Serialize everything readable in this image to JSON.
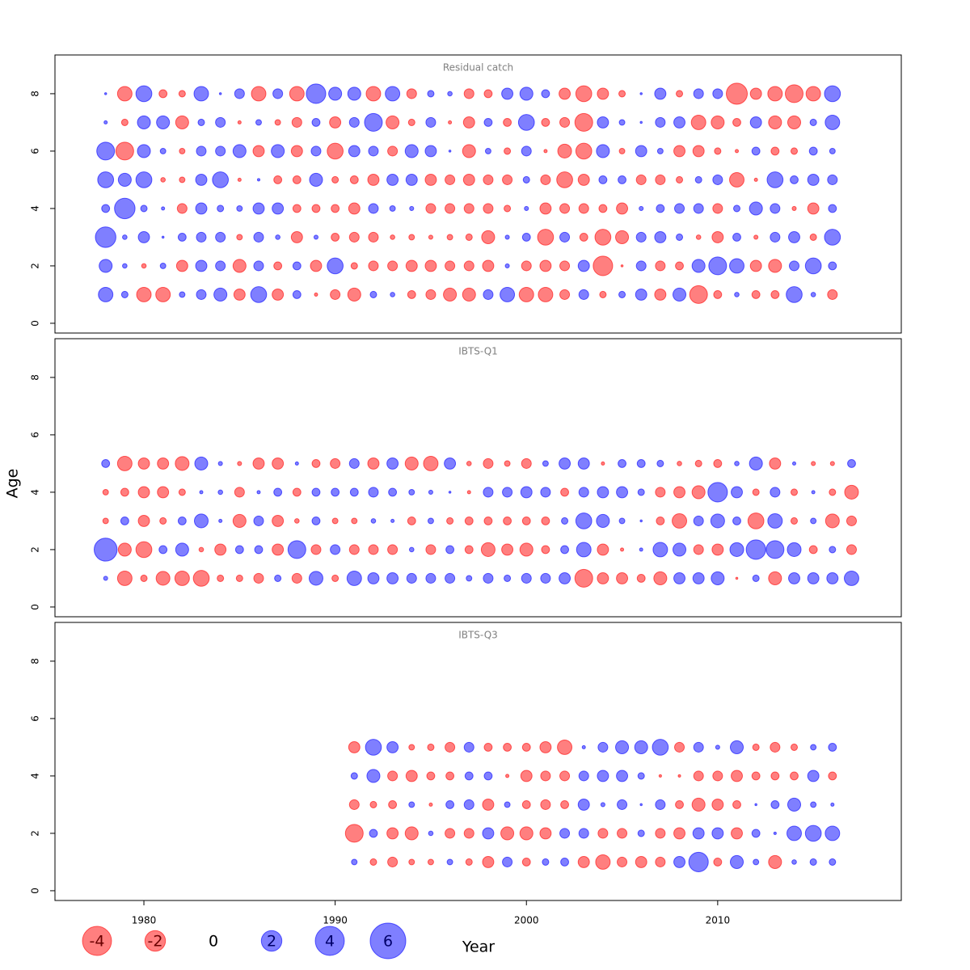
{
  "chart_data": {
    "type": "bubble",
    "xlabel": "Year",
    "ylabel": "Age",
    "xlim": [
      1975.35,
      2019.6
    ],
    "xticks": [
      1980,
      1990,
      2000,
      2010
    ],
    "negative_color": "#ff0000",
    "positive_color": "#0000ff",
    "legend": [
      -4,
      -2,
      0,
      2,
      4,
      6
    ],
    "panels": [
      {
        "title": "Residual catch",
        "x": [
          1978,
          1979,
          1980,
          1981,
          1982,
          1983,
          1984,
          1985,
          1986,
          1987,
          1988,
          1989,
          1990,
          1991,
          1992,
          1993,
          1994,
          1995,
          1996,
          1997,
          1998,
          1999,
          2000,
          2001,
          2002,
          2003,
          2004,
          2005,
          2006,
          2007,
          2008,
          2009,
          2010,
          2011,
          2012,
          2013,
          2014,
          2015,
          2016
        ],
        "y": [
          1,
          2,
          3,
          4,
          5,
          6,
          7,
          8
        ],
        "ylim": [
          -0.34,
          9.35
        ],
        "yticks": [
          0,
          2,
          4,
          6,
          8
        ],
        "values": [
          [
            1.0,
            0.2,
            -1.0,
            -1.0,
            0.15,
            0.45,
            0.8,
            -0.6,
            1.2,
            -0.6,
            0.3,
            -0.05,
            -0.45,
            -0.8,
            0.2,
            0.1,
            -0.3,
            -0.45,
            -0.8,
            -0.8,
            0.45,
            1.0,
            -1.0,
            -1.0,
            -0.45,
            0.45,
            -0.2,
            0.2,
            0.6,
            -0.6,
            0.8,
            -1.5,
            -0.3,
            0.1,
            -0.3,
            -0.3,
            1.2,
            0.1,
            -0.45
          ],
          [
            0.8,
            0.1,
            -0.1,
            0.15,
            -0.6,
            0.6,
            0.45,
            -0.8,
            0.45,
            -0.3,
            0.3,
            -0.6,
            1.2,
            -0.2,
            -0.45,
            -0.45,
            -0.6,
            -0.6,
            -0.45,
            -0.45,
            -0.6,
            0.08,
            -0.45,
            -0.6,
            -0.45,
            0.6,
            -1.8,
            -0.02,
            0.45,
            -0.45,
            -0.3,
            0.8,
            1.5,
            1.0,
            -0.6,
            -0.8,
            0.45,
            1.2,
            0.3
          ],
          [
            2.0,
            0.1,
            0.6,
            0.02,
            0.3,
            0.45,
            0.45,
            -0.15,
            0.45,
            0.1,
            -0.6,
            0.08,
            -0.3,
            -0.45,
            -0.45,
            -0.1,
            -0.15,
            -0.08,
            -0.15,
            -0.2,
            -0.8,
            0.08,
            0.3,
            -1.2,
            0.45,
            -0.3,
            -1.2,
            -0.8,
            0.45,
            0.6,
            0.2,
            -0.1,
            -0.6,
            0.3,
            -0.08,
            0.45,
            0.6,
            -0.2,
            1.2
          ],
          [
            0.3,
            2.0,
            0.2,
            0.05,
            -0.45,
            0.6,
            0.2,
            0.15,
            0.6,
            0.6,
            -0.3,
            -0.3,
            -0.3,
            -0.6,
            0.45,
            0.15,
            0.08,
            -0.45,
            -0.45,
            -0.45,
            -0.45,
            -0.2,
            0.08,
            -0.6,
            -0.45,
            -0.45,
            -0.3,
            -0.6,
            0.08,
            0.3,
            0.45,
            0.45,
            -0.45,
            0.2,
            0.8,
            0.45,
            -0.08,
            -0.6,
            0.3
          ],
          [
            1.2,
            0.8,
            1.2,
            -0.1,
            -0.15,
            0.6,
            1.2,
            -0.05,
            0.03,
            -0.3,
            -0.3,
            0.8,
            -0.2,
            -0.3,
            -0.6,
            0.6,
            0.6,
            -0.6,
            -0.45,
            -0.6,
            -0.45,
            -0.45,
            0.2,
            -0.45,
            -1.2,
            -0.6,
            0.3,
            0.3,
            -0.45,
            -0.45,
            -0.2,
            0.2,
            0.45,
            -1.0,
            -0.05,
            1.2,
            0.3,
            0.6,
            0.45
          ],
          [
            1.5,
            -1.5,
            0.8,
            0.15,
            -0.15,
            0.45,
            0.45,
            0.8,
            -0.6,
            0.8,
            -0.6,
            0.45,
            -1.2,
            0.6,
            0.45,
            -0.45,
            0.8,
            0.6,
            0.02,
            -0.8,
            0.15,
            -0.2,
            0.45,
            -0.05,
            -0.9,
            -1.2,
            0.8,
            -0.15,
            0.6,
            0.15,
            -0.6,
            -0.6,
            -0.2,
            -0.05,
            0.3,
            -0.3,
            -0.2,
            0.3,
            0.15
          ],
          [
            0.05,
            -0.2,
            0.8,
            0.8,
            -0.8,
            0.2,
            0.45,
            -0.05,
            0.15,
            -0.15,
            -0.45,
            0.3,
            -0.6,
            0.45,
            1.5,
            -0.8,
            -0.2,
            0.45,
            -0.05,
            -0.6,
            0.3,
            -0.3,
            1.2,
            -0.3,
            -0.45,
            -1.5,
            0.6,
            0.15,
            0.02,
            0.45,
            0.6,
            -1.0,
            -0.8,
            -0.3,
            0.6,
            -0.8,
            -0.8,
            0.2,
            1.0
          ],
          [
            0.02,
            -1.0,
            1.2,
            -0.3,
            -0.2,
            1.0,
            0.02,
            0.45,
            -1.0,
            0.45,
            -1.0,
            1.8,
            0.8,
            0.8,
            -1.0,
            1.0,
            -0.45,
            0.2,
            0.1,
            -0.45,
            -0.3,
            0.6,
            0.8,
            0.3,
            -0.6,
            -1.2,
            -0.6,
            -0.2,
            0.02,
            0.6,
            -0.2,
            0.45,
            0.45,
            -2.1,
            -0.6,
            -1.0,
            -1.5,
            -1.0,
            1.2
          ]
        ]
      },
      {
        "title": "IBTS-Q1",
        "x": [
          1978,
          1979,
          1980,
          1981,
          1982,
          1983,
          1984,
          1985,
          1986,
          1987,
          1988,
          1989,
          1990,
          1991,
          1992,
          1993,
          1994,
          1995,
          1996,
          1997,
          1998,
          1999,
          2000,
          2001,
          2002,
          2003,
          2004,
          2005,
          2006,
          2007,
          2008,
          2009,
          2010,
          2011,
          2012,
          2013,
          2014,
          2015,
          2016,
          2017
        ],
        "y": [
          1,
          2,
          3,
          4,
          5
        ],
        "ylim": [
          -0.34,
          9.35
        ],
        "yticks": [
          0,
          2,
          4,
          6,
          8
        ],
        "values": [
          [
            0.08,
            -1.0,
            -0.2,
            -0.9,
            -1.0,
            -1.2,
            -0.2,
            -0.2,
            -0.45,
            0.2,
            -0.45,
            0.9,
            -0.2,
            1.0,
            0.6,
            0.6,
            0.45,
            0.45,
            0.45,
            0.15,
            0.45,
            0.2,
            0.45,
            0.45,
            0.6,
            -1.5,
            -0.6,
            -0.6,
            -0.3,
            -0.8,
            0.6,
            0.6,
            0.8,
            -0.02,
            0.2,
            -0.8,
            0.6,
            0.6,
            0.6,
            1.0
          ],
          [
            2.5,
            -0.8,
            -1.2,
            0.3,
            0.8,
            -0.1,
            -0.6,
            0.3,
            0.3,
            -0.6,
            1.5,
            -0.45,
            0.45,
            -0.45,
            -0.45,
            -0.45,
            0.1,
            -0.45,
            0.3,
            -0.3,
            -0.9,
            -0.6,
            -0.8,
            -0.3,
            0.3,
            1.0,
            -0.6,
            -0.05,
            0.05,
            1.0,
            0.8,
            -0.45,
            -0.6,
            0.9,
            1.8,
            1.5,
            0.9,
            -0.3,
            0.2,
            -0.45
          ],
          [
            -0.15,
            0.3,
            -0.6,
            -0.2,
            0.3,
            0.9,
            0.05,
            -0.8,
            0.45,
            -0.6,
            -0.1,
            0.3,
            -0.15,
            -0.15,
            0.1,
            0.05,
            -0.3,
            0.15,
            -0.2,
            -0.3,
            -0.3,
            -0.3,
            -0.3,
            -0.3,
            0.2,
            1.2,
            0.8,
            0.15,
            0.02,
            -0.3,
            -1.0,
            0.45,
            0.9,
            0.3,
            -1.2,
            1.0,
            -0.2,
            0.15,
            -0.9,
            -0.45
          ],
          [
            -0.15,
            -0.3,
            -0.6,
            -0.6,
            -0.2,
            0.05,
            0.1,
            -0.45,
            0.05,
            0.3,
            -0.3,
            0.3,
            0.3,
            0.3,
            0.45,
            0.3,
            0.15,
            0.08,
            0.02,
            -0.05,
            0.45,
            0.45,
            0.6,
            0.45,
            -0.3,
            0.45,
            0.6,
            0.6,
            0.2,
            -0.45,
            -0.6,
            -0.8,
            1.8,
            0.6,
            -0.2,
            0.45,
            -0.2,
            0.05,
            -0.2,
            -0.9
          ],
          [
            0.3,
            -1.0,
            -0.6,
            -0.6,
            -0.9,
            0.8,
            0.08,
            -0.08,
            -0.6,
            -0.6,
            0.05,
            -0.3,
            -0.45,
            0.45,
            -0.6,
            0.6,
            -0.8,
            -1.0,
            0.6,
            -0.1,
            -0.45,
            -0.15,
            -0.45,
            0.15,
            0.6,
            0.6,
            -0.05,
            0.3,
            0.3,
            0.2,
            -0.1,
            -0.2,
            -0.3,
            0.1,
            0.8,
            -0.6,
            0.05,
            -0.08,
            -0.08,
            0.3
          ]
        ]
      },
      {
        "title": "IBTS-Q3",
        "x": [
          1991,
          1992,
          1993,
          1994,
          1995,
          1996,
          1997,
          1998,
          1999,
          2000,
          2001,
          2002,
          2003,
          2004,
          2005,
          2006,
          2007,
          2008,
          2009,
          2010,
          2011,
          2012,
          2013,
          2014,
          2015,
          2016
        ],
        "y": [
          1,
          2,
          3,
          4,
          5
        ],
        "ylim": [
          -0.34,
          9.35
        ],
        "yticks": [
          0,
          2,
          4,
          6,
          8
        ],
        "values": [
          [
            0.15,
            -0.2,
            -0.45,
            -0.15,
            -0.15,
            0.15,
            -0.2,
            -0.6,
            0.45,
            -0.3,
            0.2,
            0.3,
            -0.6,
            -1.0,
            -0.45,
            -0.6,
            -0.45,
            0.6,
            1.8,
            -0.3,
            0.8,
            0.15,
            -0.8,
            0.1,
            0.2,
            0.2
          ],
          [
            -1.5,
            0.3,
            -0.6,
            -0.8,
            0.1,
            -0.45,
            -0.45,
            0.6,
            -0.8,
            -0.8,
            -0.6,
            0.45,
            0.45,
            -0.45,
            -0.45,
            0.2,
            -0.45,
            -0.6,
            0.6,
            0.6,
            -0.6,
            0.3,
            0.03,
            1.0,
            1.2,
            1.0
          ],
          [
            -0.45,
            -0.2,
            -0.3,
            0.15,
            -0.05,
            0.3,
            0.45,
            -0.6,
            0.15,
            -0.3,
            -0.45,
            -0.3,
            0.6,
            0.08,
            0.45,
            0.02,
            0.45,
            -0.3,
            -0.8,
            -0.6,
            -0.3,
            0.02,
            0.3,
            0.8,
            0.15,
            0.05
          ],
          [
            0.2,
            0.8,
            -0.45,
            -0.6,
            -0.3,
            -0.3,
            0.3,
            0.3,
            -0.05,
            -0.6,
            -0.45,
            -0.45,
            0.45,
            0.6,
            0.6,
            0.2,
            -0.03,
            -0.03,
            -0.45,
            -0.45,
            -0.6,
            -0.3,
            -0.3,
            -0.3,
            0.6,
            -0.3
          ],
          [
            -0.6,
            1.2,
            0.6,
            -0.15,
            -0.2,
            -0.45,
            0.45,
            -0.3,
            -0.3,
            -0.3,
            -0.6,
            -1.0,
            0.05,
            0.45,
            0.8,
            0.8,
            1.2,
            -0.45,
            0.45,
            0.08,
            0.8,
            -0.2,
            -0.45,
            -0.2,
            0.15,
            0.3
          ]
        ]
      }
    ]
  }
}
